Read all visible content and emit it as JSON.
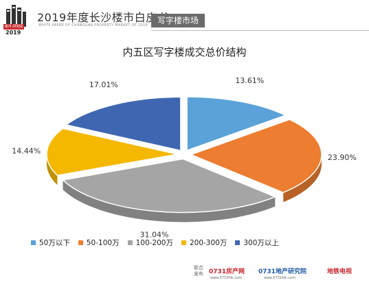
{
  "header": {
    "title": "2019年度长沙楼市白皮书",
    "subtitle": "WHITE PAPER OF CHANGSHA PROPERTY MARKET OF 2019",
    "section_tag": "写字楼市场",
    "logo_label": "楼市 研究院",
    "logo_year": "2019"
  },
  "chart_data": {
    "type": "pie",
    "title": "内五区写字楼成交总价结构",
    "categories": [
      "50万以下",
      "50-100万",
      "100-200万",
      "200-300万",
      "300万以上"
    ],
    "values": [
      13.61,
      23.9,
      31.04,
      14.44,
      17.01
    ],
    "labels": [
      "13.61%",
      "23.90%",
      "31.04%",
      "14.44%",
      "17.01%"
    ],
    "colors": [
      "#5aa2d8",
      "#ed7d31",
      "#a5a5a5",
      "#f5b800",
      "#3f67b1"
    ],
    "legend_position": "bottom",
    "style": "3d-exploded"
  },
  "footer": {
    "joint_label": "联合发布",
    "logo1": "0731房产网",
    "logo1_sub": "www.0731fdc.com",
    "logo2": "0731地产研究院",
    "logo2_sub": "www.0731fdc.com",
    "logo3": "地铁电视"
  }
}
